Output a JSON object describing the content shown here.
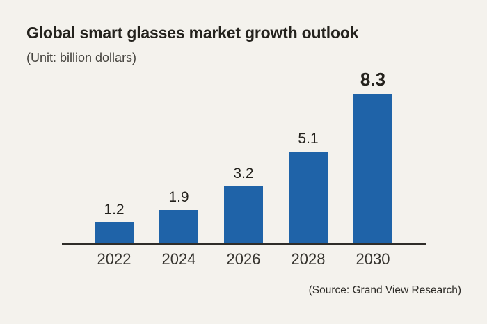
{
  "chart_data": {
    "type": "bar",
    "title": "Global smart glasses market growth outlook",
    "unit_label": "(Unit: billion dollars)",
    "source": "(Source: Grand View Research)",
    "categories": [
      "2022",
      "2024",
      "2026",
      "2028",
      "2030"
    ],
    "values": [
      1.2,
      1.9,
      3.2,
      5.1,
      8.3
    ],
    "value_labels": [
      "1.2",
      "1.9",
      "3.2",
      "5.1",
      "8.3"
    ],
    "ylim": [
      0,
      9
    ],
    "grid": false,
    "legend": "none",
    "emphasize_last_value": true,
    "bar_color": "#1f63a8",
    "axis_color": "#2f2d29",
    "background_color": "#f4f2ed",
    "text_color": "#24221d"
  }
}
